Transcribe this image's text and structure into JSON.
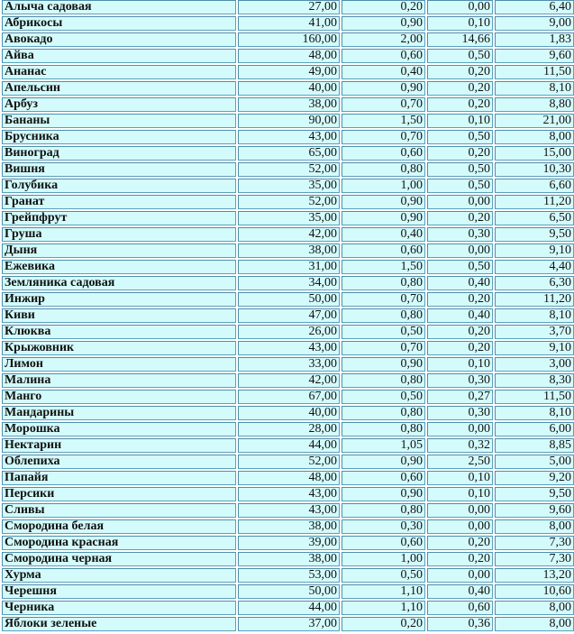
{
  "table": {
    "rows": [
      [
        "Алыча садовая",
        "27,00",
        "0,20",
        "0,00",
        "6,40"
      ],
      [
        "Абрикосы",
        "41,00",
        "0,90",
        "0,10",
        "9,00"
      ],
      [
        "Авокадо",
        "160,00",
        "2,00",
        "14,66",
        "1,83"
      ],
      [
        "Айва",
        "48,00",
        "0,60",
        "0,50",
        "9,60"
      ],
      [
        "Ананас",
        "49,00",
        "0,40",
        "0,20",
        "11,50"
      ],
      [
        "Апельсин",
        "40,00",
        "0,90",
        "0,20",
        "8,10"
      ],
      [
        "Арбуз",
        "38,00",
        "0,70",
        "0,20",
        "8,80"
      ],
      [
        "Бананы",
        "90,00",
        "1,50",
        "0,10",
        "21,00"
      ],
      [
        "Брусника",
        "43,00",
        "0,70",
        "0,50",
        "8,00"
      ],
      [
        "Виноград",
        "65,00",
        "0,60",
        "0,20",
        "15,00"
      ],
      [
        "Вишня",
        "52,00",
        "0,80",
        "0,50",
        "10,30"
      ],
      [
        "Голубика",
        "35,00",
        "1,00",
        "0,50",
        "6,60"
      ],
      [
        "Гранат",
        "52,00",
        "0,90",
        "0,00",
        "11,20"
      ],
      [
        "Грейпфрут",
        "35,00",
        "0,90",
        "0,20",
        "6,50"
      ],
      [
        "Груша",
        "42,00",
        "0,40",
        "0,30",
        "9,50"
      ],
      [
        "Дыня",
        "38,00",
        "0,60",
        "0,00",
        "9,10"
      ],
      [
        "Ежевика",
        "31,00",
        "1,50",
        "0,50",
        "4,40"
      ],
      [
        "Земляника садовая",
        "34,00",
        "0,80",
        "0,40",
        "6,30"
      ],
      [
        "Инжир",
        "50,00",
        "0,70",
        "0,20",
        "11,20"
      ],
      [
        "Киви",
        "47,00",
        "0,80",
        "0,40",
        "8,10"
      ],
      [
        "Клюква",
        "26,00",
        "0,50",
        "0,20",
        "3,70"
      ],
      [
        "Крыжовник",
        "43,00",
        "0,70",
        "0,20",
        "9,10"
      ],
      [
        "Лимон",
        "33,00",
        "0,90",
        "0,10",
        "3,00"
      ],
      [
        "Малина",
        "42,00",
        "0,80",
        "0,30",
        "8,30"
      ],
      [
        "Манго",
        "67,00",
        "0,50",
        "0,27",
        "11,50"
      ],
      [
        "Мандарины",
        "40,00",
        "0,80",
        "0,30",
        "8,10"
      ],
      [
        "Морошка",
        "28,00",
        "0,80",
        "0,00",
        "6,00"
      ],
      [
        "Нектарин",
        "44,00",
        "1,05",
        "0,32",
        "8,85"
      ],
      [
        "Облепиха",
        "52,00",
        "0,90",
        "2,50",
        "5,00"
      ],
      [
        "Папайя",
        "48,00",
        "0,60",
        "0,10",
        "9,20"
      ],
      [
        "Персики",
        "43,00",
        "0,90",
        "0,10",
        "9,50"
      ],
      [
        "Сливы",
        "43,00",
        "0,80",
        "0,00",
        "9,60"
      ],
      [
        "Смородина белая",
        "38,00",
        "0,30",
        "0,00",
        "8,00"
      ],
      [
        "Смородина красная",
        "39,00",
        "0,60",
        "0,20",
        "7,30"
      ],
      [
        "Смородина черная",
        "38,00",
        "1,00",
        "0,20",
        "7,30"
      ],
      [
        "Хурма",
        "53,00",
        "0,50",
        "0,00",
        "13,20"
      ],
      [
        "Черешня",
        "50,00",
        "1,10",
        "0,40",
        "10,60"
      ],
      [
        "Черника",
        "44,00",
        "1,10",
        "0,60",
        "8,00"
      ],
      [
        "Яблоки зеленые",
        "37,00",
        "0,20",
        "0,36",
        "8,00"
      ]
    ]
  },
  "colors": {
    "cell_bg": "#d4fbfb",
    "border": "#5b9fbd"
  }
}
